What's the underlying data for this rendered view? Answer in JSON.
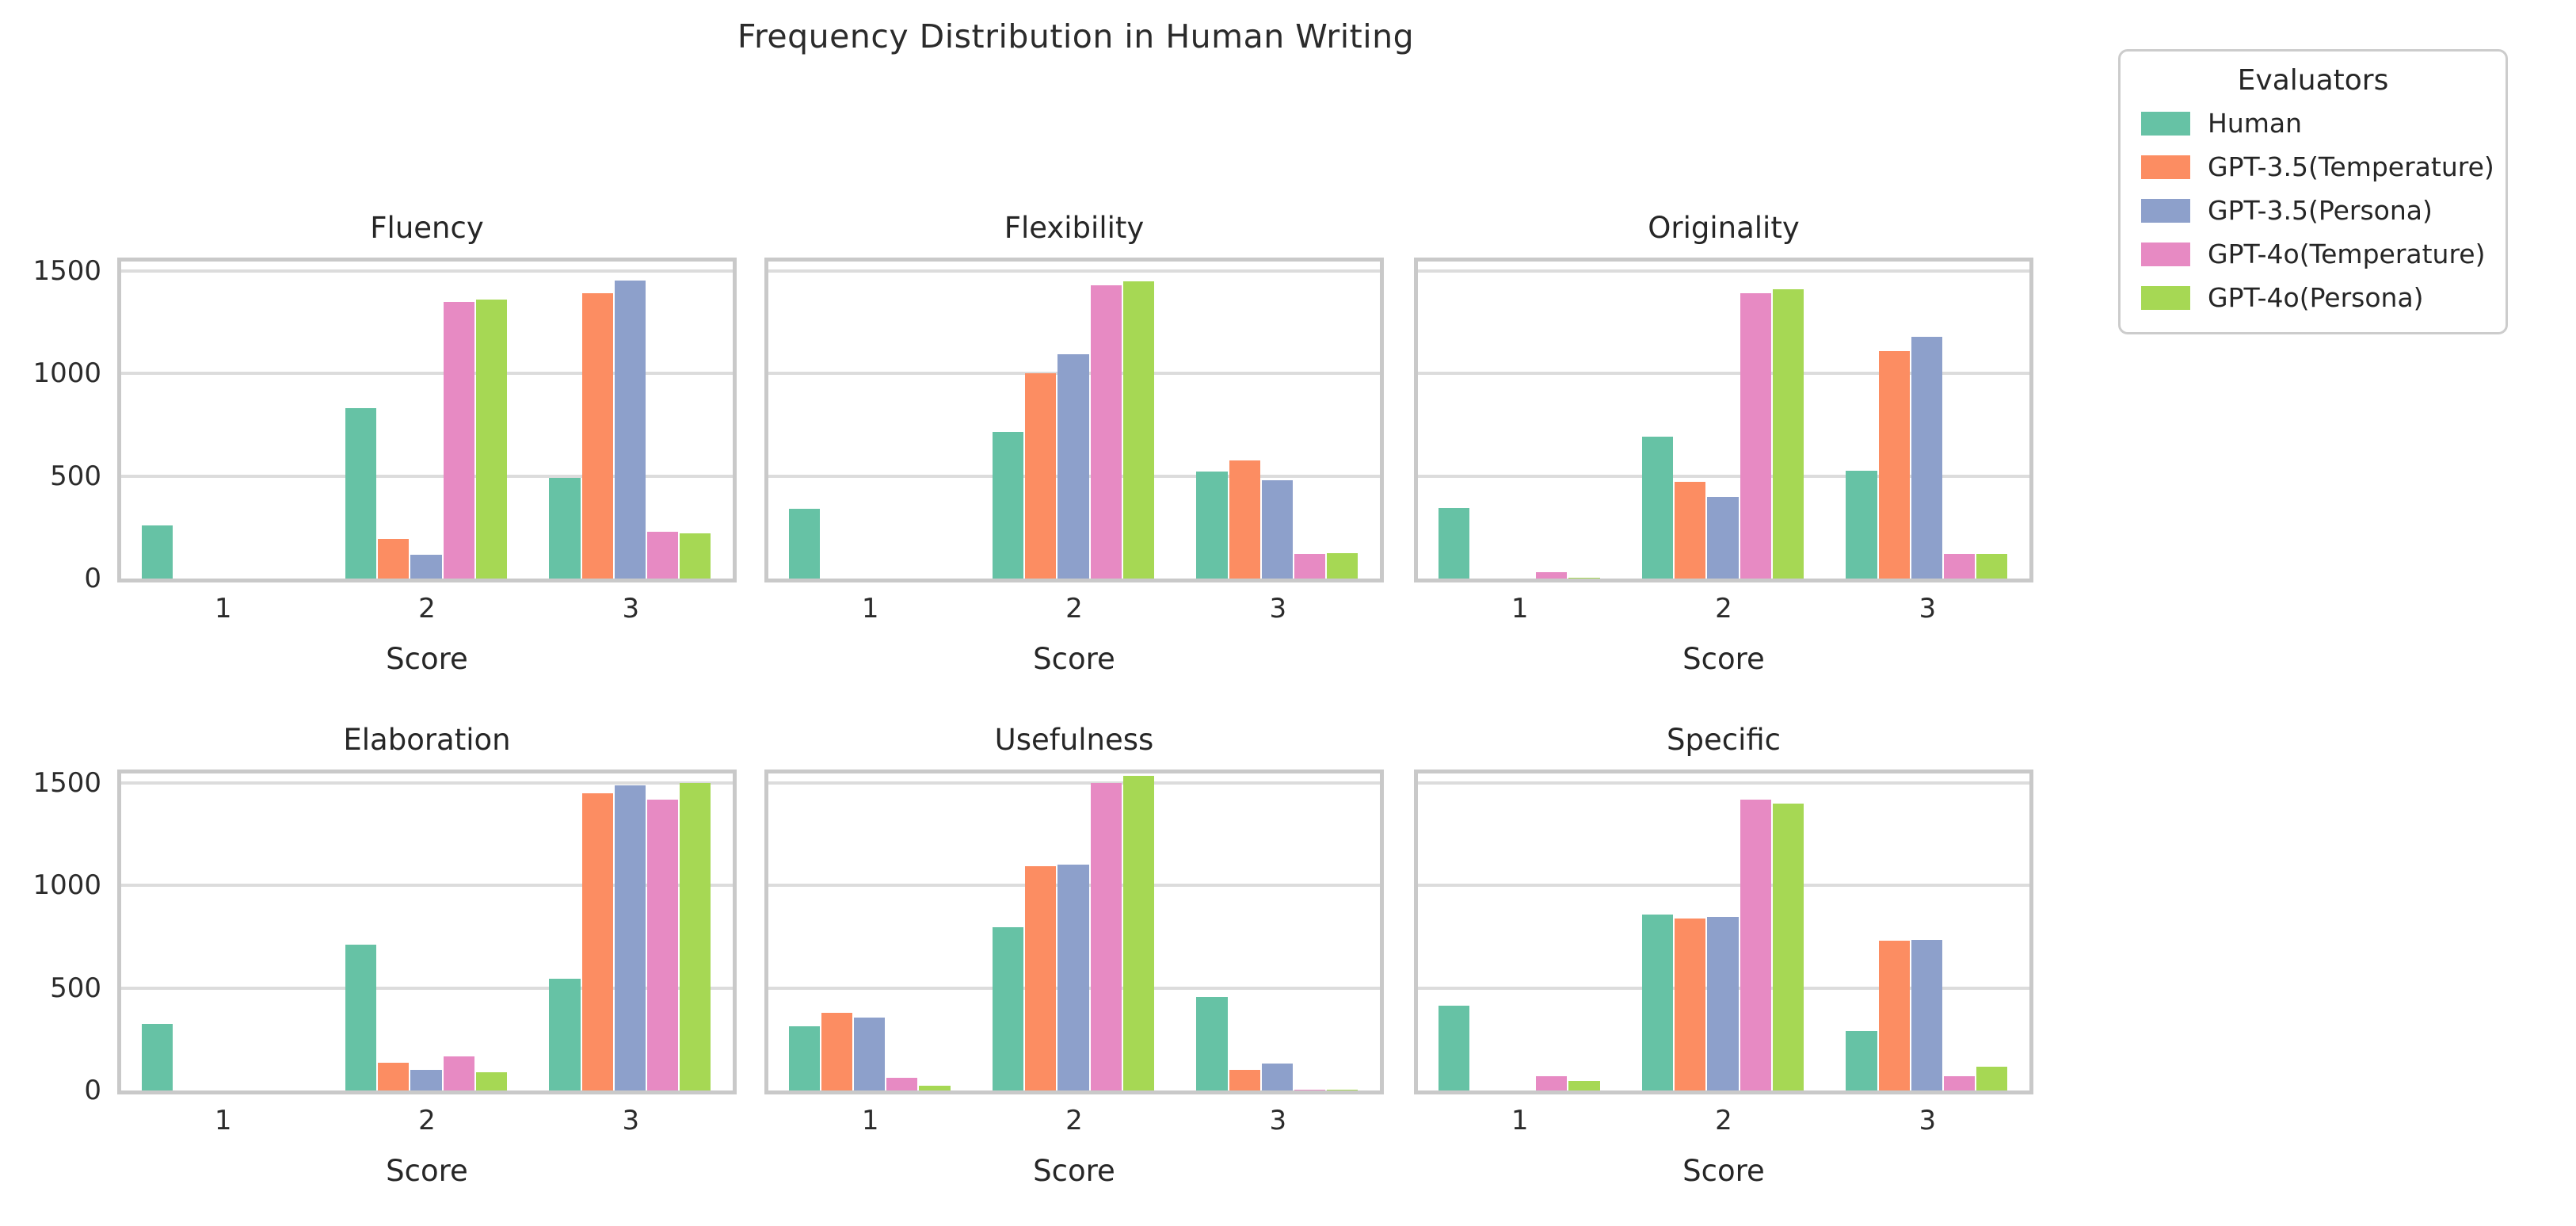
{
  "figure": {
    "title": "Frequency Distribution in Human Writing"
  },
  "legend": {
    "title": "Evaluators",
    "items": [
      {
        "label": "Human",
        "color": "#66c2a5"
      },
      {
        "label": "GPT-3.5(Temperature)",
        "color": "#fc8d62"
      },
      {
        "label": "GPT-3.5(Persona)",
        "color": "#8da0cb"
      },
      {
        "label": "GPT-4o(Temperature)",
        "color": "#e78ac3"
      },
      {
        "label": "GPT-4o(Persona)",
        "color": "#a6d854"
      }
    ]
  },
  "chart_data": {
    "type": "bar",
    "grouped": true,
    "title": "Frequency Distribution in Human Writing",
    "categories": [
      "1",
      "2",
      "3"
    ],
    "xlabel": "Score",
    "ylabel": "",
    "ylim": [
      0,
      1546
    ],
    "yticks": [
      0,
      500,
      1000,
      1500
    ],
    "grid": true,
    "legend_title": "Evaluators",
    "legend_position": "outside upper right",
    "subplots": [
      {
        "title": "Fluency",
        "series": [
          {
            "name": "Human",
            "color": "#66c2a5",
            "values": [
              260,
              830,
              490
            ]
          },
          {
            "name": "GPT-3.5(Temperature)",
            "color": "#fc8d62",
            "values": [
              0,
              195,
              1390
            ]
          },
          {
            "name": "GPT-3.5(Persona)",
            "color": "#8da0cb",
            "values": [
              0,
              115,
              1455
            ]
          },
          {
            "name": "GPT-4o(Temperature)",
            "color": "#e78ac3",
            "values": [
              0,
              1350,
              230
            ]
          },
          {
            "name": "GPT-4o(Persona)",
            "color": "#a6d854",
            "values": [
              0,
              1360,
              220
            ]
          }
        ]
      },
      {
        "title": "Flexibility",
        "series": [
          {
            "name": "Human",
            "color": "#66c2a5",
            "values": [
              340,
              715,
              520
            ]
          },
          {
            "name": "GPT-3.5(Temperature)",
            "color": "#fc8d62",
            "values": [
              0,
              1000,
              575
            ]
          },
          {
            "name": "GPT-3.5(Persona)",
            "color": "#8da0cb",
            "values": [
              0,
              1095,
              480
            ]
          },
          {
            "name": "GPT-4o(Temperature)",
            "color": "#e78ac3",
            "values": [
              0,
              1430,
              120
            ]
          },
          {
            "name": "GPT-4o(Persona)",
            "color": "#a6d854",
            "values": [
              0,
              1450,
              125
            ]
          }
        ]
      },
      {
        "title": "Originality",
        "series": [
          {
            "name": "Human",
            "color": "#66c2a5",
            "values": [
              345,
              690,
              525
            ]
          },
          {
            "name": "GPT-3.5(Temperature)",
            "color": "#fc8d62",
            "values": [
              0,
              470,
              1110
            ]
          },
          {
            "name": "GPT-3.5(Persona)",
            "color": "#8da0cb",
            "values": [
              0,
              400,
              1180
            ]
          },
          {
            "name": "GPT-4o(Temperature)",
            "color": "#e78ac3",
            "values": [
              30,
              1390,
              120
            ]
          },
          {
            "name": "GPT-4o(Persona)",
            "color": "#a6d854",
            "values": [
              5,
              1410,
              120
            ]
          }
        ]
      },
      {
        "title": "Elaboration",
        "series": [
          {
            "name": "Human",
            "color": "#66c2a5",
            "values": [
              325,
              710,
              545
            ]
          },
          {
            "name": "GPT-3.5(Temperature)",
            "color": "#fc8d62",
            "values": [
              0,
              135,
              1450
            ]
          },
          {
            "name": "GPT-3.5(Persona)",
            "color": "#8da0cb",
            "values": [
              0,
              100,
              1490
            ]
          },
          {
            "name": "GPT-4o(Temperature)",
            "color": "#e78ac3",
            "values": [
              0,
              165,
              1420
            ]
          },
          {
            "name": "GPT-4o(Persona)",
            "color": "#a6d854",
            "values": [
              0,
              90,
              1500
            ]
          }
        ]
      },
      {
        "title": "Usefulness",
        "series": [
          {
            "name": "Human",
            "color": "#66c2a5",
            "values": [
              315,
              795,
              455
            ]
          },
          {
            "name": "GPT-3.5(Temperature)",
            "color": "#fc8d62",
            "values": [
              380,
              1095,
              100
            ]
          },
          {
            "name": "GPT-3.5(Persona)",
            "color": "#8da0cb",
            "values": [
              355,
              1100,
              130
            ]
          },
          {
            "name": "GPT-4o(Temperature)",
            "color": "#e78ac3",
            "values": [
              60,
              1500,
              5
            ]
          },
          {
            "name": "GPT-4o(Persona)",
            "color": "#a6d854",
            "values": [
              25,
              1535,
              5
            ]
          }
        ]
      },
      {
        "title": "Specific",
        "series": [
          {
            "name": "Human",
            "color": "#66c2a5",
            "values": [
              415,
              860,
              290
            ]
          },
          {
            "name": "GPT-3.5(Temperature)",
            "color": "#fc8d62",
            "values": [
              0,
              840,
              730
            ]
          },
          {
            "name": "GPT-3.5(Persona)",
            "color": "#8da0cb",
            "values": [
              0,
              845,
              735
            ]
          },
          {
            "name": "GPT-4o(Temperature)",
            "color": "#e78ac3",
            "values": [
              70,
              1420,
              70
            ]
          },
          {
            "name": "GPT-4o(Persona)",
            "color": "#a6d854",
            "values": [
              45,
              1400,
              115
            ]
          }
        ]
      }
    ]
  }
}
